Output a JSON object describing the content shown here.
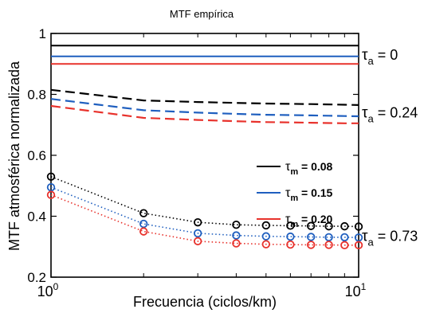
{
  "chart_data": {
    "type": "line",
    "title": "MTF empírica",
    "xlabel": "Frecuencia (ciclos/km)",
    "ylabel": "MTF atmosférica normalizada",
    "x_scale": "log",
    "xlim": [
      1,
      10
    ],
    "ylim": [
      0.2,
      1.0
    ],
    "x_ticks": [
      {
        "value": 1,
        "base": "10",
        "exp": "0"
      },
      {
        "value": 10,
        "base": "10",
        "exp": "1"
      }
    ],
    "y_ticks": [
      {
        "value": 0.2,
        "label": "0.2"
      },
      {
        "value": 0.4,
        "label": "0.4"
      },
      {
        "value": 0.6,
        "label": "0.6"
      },
      {
        "value": 0.8,
        "label": "0.8"
      },
      {
        "value": 1.0,
        "label": "1"
      }
    ],
    "x": [
      1,
      2,
      3,
      4,
      5,
      6,
      7,
      8,
      9,
      10
    ],
    "series": [
      {
        "group": "tau_a_0",
        "style": "solid",
        "marker": "none",
        "color": "#000000",
        "values": [
          0.96,
          0.96,
          0.96,
          0.96,
          0.96,
          0.96,
          0.96,
          0.96,
          0.96,
          0.96
        ]
      },
      {
        "group": "tau_a_0",
        "style": "solid",
        "marker": "none",
        "color": "#1f5fbf",
        "values": [
          0.925,
          0.925,
          0.925,
          0.925,
          0.925,
          0.925,
          0.925,
          0.925,
          0.925,
          0.925
        ]
      },
      {
        "group": "tau_a_0",
        "style": "solid",
        "marker": "none",
        "color": "#e8322c",
        "values": [
          0.9,
          0.9,
          0.9,
          0.9,
          0.9,
          0.9,
          0.9,
          0.9,
          0.9,
          0.9
        ]
      },
      {
        "group": "tau_a_0.24",
        "style": "dashed",
        "marker": "none",
        "color": "#000000",
        "values": [
          0.815,
          0.78,
          0.775,
          0.772,
          0.77,
          0.769,
          0.768,
          0.767,
          0.766,
          0.765
        ]
      },
      {
        "group": "tau_a_0.24",
        "style": "dashed",
        "marker": "none",
        "color": "#1f5fbf",
        "values": [
          0.785,
          0.748,
          0.74,
          0.736,
          0.733,
          0.732,
          0.731,
          0.73,
          0.729,
          0.728
        ]
      },
      {
        "group": "tau_a_0.24",
        "style": "dashed",
        "marker": "none",
        "color": "#e8322c",
        "values": [
          0.762,
          0.723,
          0.716,
          0.712,
          0.709,
          0.708,
          0.707,
          0.706,
          0.705,
          0.705
        ]
      },
      {
        "group": "tau_a_0.73",
        "style": "dotted",
        "marker": "circle",
        "color": "#000000",
        "values": [
          0.53,
          0.41,
          0.38,
          0.372,
          0.37,
          0.369,
          0.368,
          0.367,
          0.367,
          0.366
        ]
      },
      {
        "group": "tau_a_0.73",
        "style": "dotted",
        "marker": "circle",
        "color": "#1f5fbf",
        "values": [
          0.495,
          0.375,
          0.344,
          0.337,
          0.334,
          0.333,
          0.332,
          0.331,
          0.331,
          0.33
        ]
      },
      {
        "group": "tau_a_0.73",
        "style": "dotted",
        "marker": "circle",
        "color": "#e8322c",
        "values": [
          0.47,
          0.35,
          0.318,
          0.311,
          0.308,
          0.307,
          0.306,
          0.306,
          0.305,
          0.305
        ]
      }
    ],
    "legend": {
      "placement": "center-right",
      "entries": [
        {
          "symbol": "τ",
          "sub": "m",
          "text": " = 0.08",
          "color": "#000000"
        },
        {
          "symbol": "τ",
          "sub": "m",
          "text": " = 0.15",
          "color": "#1f5fbf"
        },
        {
          "symbol": "τ",
          "sub": "m",
          "text": " = 0.20",
          "color": "#e8322c"
        }
      ]
    },
    "annotations": [
      {
        "symbol": "τ",
        "sub": "a",
        "text": " = 0",
        "at_value": 0.93
      },
      {
        "symbol": "τ",
        "sub": "a",
        "text": " = 0.24",
        "at_value": 0.74
      },
      {
        "symbol": "τ",
        "sub": "a",
        "text": " = 0.73",
        "at_value": 0.335
      }
    ],
    "grid": false
  }
}
